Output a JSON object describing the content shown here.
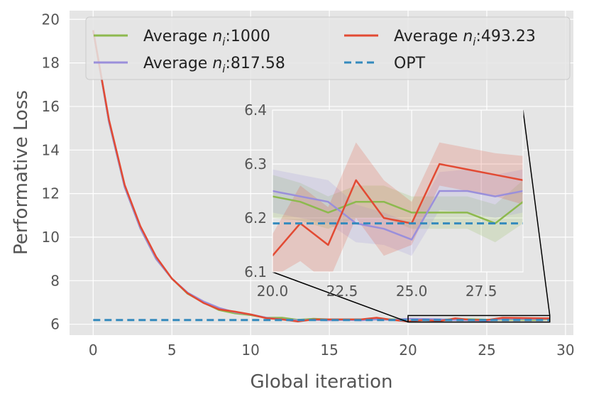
{
  "chart_data": {
    "type": "line",
    "xlabel": "Global iteration",
    "ylabel": "Performative Loss",
    "xlim": [
      -1.5,
      30.5
    ],
    "ylim": [
      5.5,
      20.4
    ],
    "xticks": [
      0,
      5,
      10,
      15,
      20,
      25,
      30
    ],
    "yticks": [
      6,
      8,
      10,
      12,
      14,
      16,
      18,
      20
    ],
    "x": [
      0,
      1,
      2,
      3,
      4,
      5,
      6,
      7,
      8,
      9,
      10,
      11,
      12,
      13,
      14,
      15,
      16,
      17,
      18,
      19,
      20,
      21,
      22,
      23,
      24,
      25,
      26,
      27,
      28,
      29
    ],
    "legend_location": "top",
    "series": [
      {
        "name": "Average n_i:1000",
        "label_prefix": "Average ",
        "label_var": "n",
        "label_sub": "i",
        "label_suffix": ":1000",
        "color": "#8DB94E",
        "style": "solid",
        "values": [
          19.5,
          15.3,
          12.3,
          10.4,
          9.0,
          8.1,
          7.4,
          7.0,
          6.65,
          6.5,
          6.42,
          6.3,
          6.3,
          6.2,
          6.25,
          6.22,
          6.22,
          6.22,
          6.25,
          6.22,
          6.24,
          6.23,
          6.21,
          6.23,
          6.23,
          6.21,
          6.21,
          6.21,
          6.19,
          6.23
        ]
      },
      {
        "name": "Average n_i:817.58",
        "label_prefix": "Average ",
        "label_var": "n",
        "label_sub": "i",
        "label_suffix": ":817.58",
        "color": "#9A8FDB",
        "style": "solid",
        "values": [
          19.5,
          15.3,
          12.3,
          10.4,
          9.0,
          8.1,
          7.45,
          7.05,
          6.75,
          6.55,
          6.45,
          6.3,
          6.22,
          6.18,
          6.2,
          6.18,
          6.2,
          6.18,
          6.22,
          6.2,
          6.25,
          6.24,
          6.23,
          6.19,
          6.18,
          6.16,
          6.25,
          6.25,
          6.24,
          6.25
        ]
      },
      {
        "name": "Average n_i:493.23",
        "label_prefix": "Average ",
        "label_var": "n",
        "label_sub": "i",
        "label_suffix": ":493.23",
        "color": "#E24A33",
        "style": "solid",
        "values": [
          19.5,
          15.4,
          12.4,
          10.5,
          9.1,
          8.1,
          7.42,
          6.98,
          6.68,
          6.58,
          6.45,
          6.28,
          6.22,
          6.13,
          6.22,
          6.22,
          6.22,
          6.22,
          6.3,
          6.2,
          6.13,
          6.19,
          6.15,
          6.27,
          6.2,
          6.19,
          6.3,
          6.29,
          6.28,
          6.27
        ]
      },
      {
        "name": "OPT",
        "label_prefix": "OPT",
        "label_var": "",
        "label_sub": "",
        "label_suffix": "",
        "color": "#348ABD",
        "style": "dashed",
        "values": [
          6.19,
          6.19,
          6.19,
          6.19,
          6.19,
          6.19,
          6.19,
          6.19,
          6.19,
          6.19,
          6.19,
          6.19,
          6.19,
          6.19,
          6.19,
          6.19,
          6.19,
          6.19,
          6.19,
          6.19,
          6.19,
          6.19,
          6.19,
          6.19,
          6.19,
          6.19,
          6.19,
          6.19,
          6.19,
          6.19
        ]
      }
    ],
    "inset": {
      "xlim": [
        20,
        29
      ],
      "ylim": [
        6.1,
        6.4
      ],
      "xticks": [
        "20.0",
        "22.5",
        "25.0",
        "27.5"
      ],
      "yticks": [
        "6.1",
        "6.2",
        "6.3",
        "6.4"
      ],
      "bands": [
        {
          "series": "Average n_i:1000",
          "color": "#8DB94E",
          "halfwidth": [
            0.04,
            0.035,
            0.03,
            0.03,
            0.03,
            0.03,
            0.03,
            0.03,
            0.035,
            0.04
          ]
        },
        {
          "series": "Average n_i:817.58",
          "color": "#9A8FDB",
          "halfwidth": [
            0.04,
            0.04,
            0.04,
            0.035,
            0.03,
            0.03,
            0.035,
            0.04,
            0.04,
            0.04
          ]
        },
        {
          "series": "Average n_i:493.23",
          "color": "#E24A33",
          "halfwidth": [
            0.04,
            0.07,
            0.07,
            0.07,
            0.07,
            0.04,
            0.04,
            0.04,
            0.04,
            0.045
          ]
        }
      ]
    }
  }
}
